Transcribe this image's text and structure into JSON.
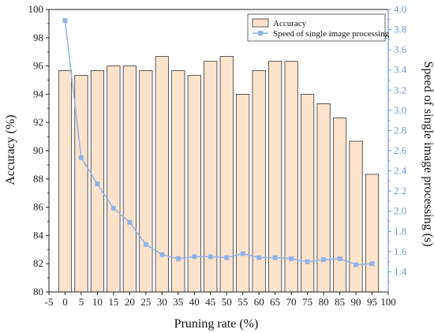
{
  "chart_data": {
    "type": "bar+line",
    "x_categories": [
      0,
      5,
      10,
      15,
      20,
      25,
      30,
      35,
      40,
      45,
      50,
      55,
      60,
      65,
      70,
      75,
      80,
      85,
      90,
      95
    ],
    "series": [
      {
        "name": "Accuracy",
        "type": "bar",
        "axis": "left",
        "values": [
          95.67,
          95.33,
          95.67,
          96.0,
          96.0,
          95.67,
          96.67,
          95.67,
          95.33,
          96.33,
          96.67,
          94.0,
          95.67,
          96.33,
          96.33,
          94.0,
          93.33,
          92.33,
          90.67,
          88.33
        ]
      },
      {
        "name": "Speed of single image processing",
        "type": "line",
        "axis": "right",
        "values": [
          3.89,
          2.53,
          2.27,
          2.03,
          1.89,
          1.67,
          1.57,
          1.53,
          1.55,
          1.55,
          1.54,
          1.58,
          1.54,
          1.54,
          1.53,
          1.5,
          1.52,
          1.53,
          1.47,
          1.48
        ]
      }
    ],
    "xlabel": "Pruning rate (%)",
    "ylabel_left": "Accuracy (%)",
    "ylabel_right": "Speed of single image processing (s)",
    "xlim": [
      -5,
      100
    ],
    "xticks": [
      -5,
      0,
      5,
      10,
      15,
      20,
      25,
      30,
      35,
      40,
      45,
      50,
      55,
      60,
      65,
      70,
      75,
      80,
      85,
      90,
      95,
      100
    ],
    "ylim_left": [
      80,
      100
    ],
    "yticks_left": [
      80,
      82,
      84,
      86,
      88,
      90,
      92,
      94,
      96,
      98,
      100
    ],
    "ylim_right": [
      1.2,
      4.0
    ],
    "yticks_right": [
      "1.4",
      "1.6",
      "1.8",
      "2.0",
      "2.2",
      "2.4",
      "2.6",
      "2.8",
      "3.0",
      "3.2",
      "3.4",
      "3.6",
      "3.8",
      "4.0"
    ],
    "grid": false,
    "legend_position": "top-right",
    "colors": {
      "bar_fill": "#fde3cc",
      "bar_stroke": "#333333",
      "line": "#8fb3e8",
      "marker": "#8fb3e8",
      "right_axis": "#6b9bd8"
    }
  }
}
